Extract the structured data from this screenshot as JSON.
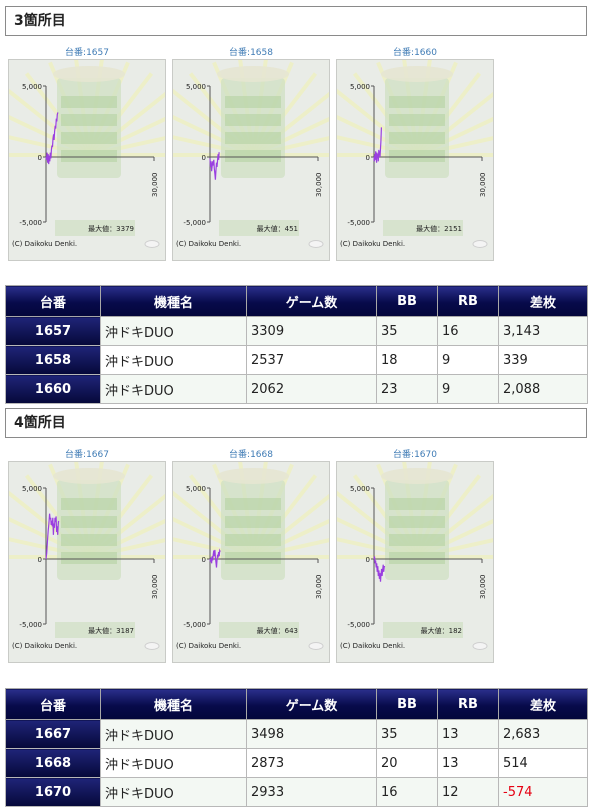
{
  "sections": [
    {
      "title": "3箇所目",
      "graphs": [
        {
          "label": "台番:1657",
          "max_label": "最大値：3379",
          "credit": "(C) Daikoku Denki.",
          "y_max": "5,000",
          "y_zero": "0",
          "y_min": "-5,000",
          "x_label": "30,000",
          "trace": [
            [
              0,
              0
            ],
            [
              150,
              -200
            ],
            [
              300,
              300
            ],
            [
              450,
              -400
            ],
            [
              600,
              200
            ],
            [
              750,
              -500
            ],
            [
              900,
              100
            ],
            [
              1050,
              -300
            ],
            [
              1200,
              300
            ],
            [
              1350,
              -100
            ],
            [
              1500,
              500
            ],
            [
              1650,
              800
            ],
            [
              1800,
              700
            ],
            [
              1950,
              1300
            ],
            [
              2100,
              1600
            ],
            [
              2250,
              1200
            ],
            [
              2400,
              1800
            ],
            [
              2550,
              2200
            ],
            [
              2700,
              2000
            ],
            [
              2850,
              2700
            ],
            [
              3000,
              2500
            ],
            [
              3150,
              3000
            ],
            [
              3309,
              3143
            ]
          ]
        },
        {
          "label": "台番:1658",
          "max_label": "最大値：451",
          "credit": "(C) Daikoku Denki.",
          "y_max": "5,000",
          "y_zero": "0",
          "y_min": "-5,000",
          "x_label": "30,000",
          "trace": [
            [
              0,
              -100
            ],
            [
              150,
              -700
            ],
            [
              300,
              -300
            ],
            [
              450,
              -1000
            ],
            [
              600,
              -600
            ],
            [
              750,
              -300
            ],
            [
              900,
              -600
            ],
            [
              1050,
              -200
            ],
            [
              1200,
              -800
            ],
            [
              1350,
              -1200
            ],
            [
              1500,
              -1600
            ],
            [
              1650,
              -1000
            ],
            [
              1800,
              -400
            ],
            [
              1950,
              -700
            ],
            [
              2100,
              -200
            ],
            [
              2250,
              200
            ],
            [
              2400,
              -200
            ],
            [
              2537,
              339
            ]
          ]
        },
        {
          "label": "台番:1660",
          "max_label": "最大値：2151",
          "credit": "(C) Daikoku Denki.",
          "y_max": "5,000",
          "y_zero": "0",
          "y_min": "-5,000",
          "x_label": "30,000",
          "trace": [
            [
              0,
              0
            ],
            [
              120,
              -300
            ],
            [
              240,
              200
            ],
            [
              360,
              -200
            ],
            [
              480,
              400
            ],
            [
              600,
              0
            ],
            [
              720,
              -400
            ],
            [
              840,
              300
            ],
            [
              960,
              -100
            ],
            [
              1080,
              200
            ],
            [
              1200,
              -300
            ],
            [
              1320,
              500
            ],
            [
              1440,
              100
            ],
            [
              1560,
              400
            ],
            [
              1680,
              0
            ],
            [
              1800,
              600
            ],
            [
              1920,
              1100
            ],
            [
              2062,
              2088
            ]
          ]
        }
      ],
      "table": {
        "headers": [
          "台番",
          "機種名",
          "ゲーム数",
          "BB",
          "RB",
          "差枚"
        ],
        "rows": [
          {
            "num": "1657",
            "name": "沖ドキDUO",
            "games": "3309",
            "bb": "35",
            "rb": "16",
            "diff": "3,143"
          },
          {
            "num": "1658",
            "name": "沖ドキDUO",
            "games": "2537",
            "bb": "18",
            "rb": "9",
            "diff": "339"
          },
          {
            "num": "1660",
            "name": "沖ドキDUO",
            "games": "2062",
            "bb": "23",
            "rb": "9",
            "diff": "2,088"
          }
        ]
      }
    },
    {
      "title": "4箇所目",
      "graphs": [
        {
          "label": "台番:1667",
          "max_label": "最大値：3187",
          "credit": "(C) Daikoku Denki.",
          "y_max": "5,000",
          "y_zero": "0",
          "y_min": "-5,000",
          "x_label": "30,000",
          "trace": [
            [
              0,
              0
            ],
            [
              200,
              400
            ],
            [
              400,
              1200
            ],
            [
              600,
              2000
            ],
            [
              800,
              2500
            ],
            [
              1000,
              3187
            ],
            [
              1150,
              2800
            ],
            [
              1300,
              2900
            ],
            [
              1450,
              2400
            ],
            [
              1600,
              2700
            ],
            [
              1750,
              2300
            ],
            [
              1900,
              2900
            ],
            [
              2050,
              1700
            ],
            [
              2200,
              2500
            ],
            [
              2350,
              2200
            ],
            [
              2500,
              2900
            ],
            [
              2650,
              2600
            ],
            [
              2800,
              3000
            ],
            [
              2950,
              1900
            ],
            [
              3100,
              2300
            ],
            [
              3250,
              1700
            ],
            [
              3400,
              2400
            ],
            [
              3498,
              2683
            ]
          ]
        },
        {
          "label": "台番:1668",
          "max_label": "最大値：643",
          "credit": "(C) Daikoku Denki.",
          "y_max": "5,000",
          "y_zero": "0",
          "y_min": "-5,000",
          "x_label": "30,000",
          "trace": [
            [
              0,
              0
            ],
            [
              150,
              -200
            ],
            [
              300,
              100
            ],
            [
              450,
              -300
            ],
            [
              600,
              200
            ],
            [
              750,
              -100
            ],
            [
              900,
              300
            ],
            [
              1050,
              600
            ],
            [
              1200,
              200
            ],
            [
              1350,
              643
            ],
            [
              1500,
              100
            ],
            [
              1650,
              -200
            ],
            [
              1800,
              -600
            ],
            [
              1950,
              -100
            ],
            [
              2100,
              300
            ],
            [
              2250,
              100
            ],
            [
              2400,
              500
            ],
            [
              2550,
              200
            ],
            [
              2700,
              600
            ],
            [
              2873,
              514
            ]
          ]
        },
        {
          "label": "台番:1670",
          "max_label": "最大値：182",
          "credit": "(C) Daikoku Denki.",
          "y_max": "5,000",
          "y_zero": "0",
          "y_min": "-5,000",
          "x_label": "30,000",
          "trace": [
            [
              0,
              0
            ],
            [
              150,
              182
            ],
            [
              300,
              -300
            ],
            [
              450,
              -100
            ],
            [
              600,
              -600
            ],
            [
              750,
              -300
            ],
            [
              900,
              -900
            ],
            [
              1050,
              -500
            ],
            [
              1200,
              -1200
            ],
            [
              1350,
              -800
            ],
            [
              1500,
              -1400
            ],
            [
              1650,
              -1000
            ],
            [
              1800,
              -1600
            ],
            [
              1950,
              -1100
            ],
            [
              2100,
              -700
            ],
            [
              2250,
              -1200
            ],
            [
              2400,
              -800
            ],
            [
              2550,
              -400
            ],
            [
              2700,
              -900
            ],
            [
              2850,
              -500
            ],
            [
              2933,
              -574
            ]
          ]
        }
      ],
      "table": {
        "headers": [
          "台番",
          "機種名",
          "ゲーム数",
          "BB",
          "RB",
          "差枚"
        ],
        "rows": [
          {
            "num": "1667",
            "name": "沖ドキDUO",
            "games": "3498",
            "bb": "35",
            "rb": "13",
            "diff": "2,683"
          },
          {
            "num": "1668",
            "name": "沖ドキDUO",
            "games": "2873",
            "bb": "20",
            "rb": "13",
            "diff": "514"
          },
          {
            "num": "1670",
            "name": "沖ドキDUO",
            "games": "2933",
            "bb": "16",
            "rb": "12",
            "diff": "-574",
            "negative": true
          }
        ]
      }
    }
  ],
  "graph_axis": {
    "y_range": [
      -5000,
      5000
    ],
    "x_range": [
      0,
      30000
    ]
  },
  "colors": {
    "trace": "#9a3fe0",
    "header_dark": "#050839",
    "negative": "#e60012",
    "graph_bg": "#e9ece7"
  }
}
